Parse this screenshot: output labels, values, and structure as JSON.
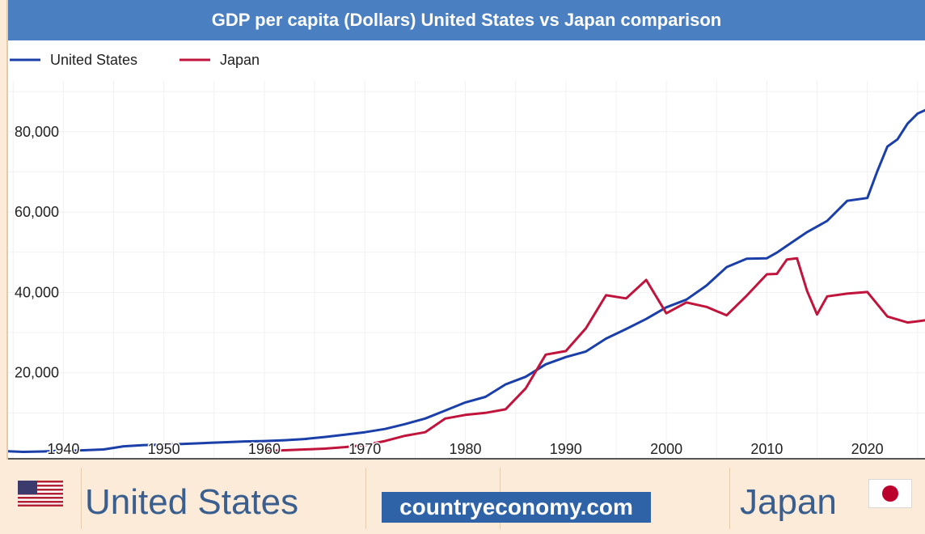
{
  "chart_data": {
    "type": "line",
    "title": "GDP per capita (Dollars) United States vs Japan comparison",
    "xlim": [
      1934.5,
      2025.9
    ],
    "ylim": [
      0,
      87000
    ],
    "x_ticks": [
      1940,
      1950,
      1960,
      1970,
      1980,
      1990,
      2000,
      2010,
      2020
    ],
    "y_ticks": [
      20000,
      40000,
      60000,
      80000
    ],
    "y_tick_labels": [
      "20,000",
      "40,000",
      "60,000",
      "80,000"
    ],
    "x_tick_labels": [
      "1940",
      "1950",
      "1960",
      "1970",
      "1980",
      "1990",
      "2000",
      "2010",
      "2020"
    ],
    "grid": true,
    "legend_position": "top-left",
    "series": [
      {
        "name": "United States",
        "color": "#1a3fa8",
        "x": [
          1934,
          1936,
          1938,
          1940,
          1942,
          1944,
          1946,
          1948,
          1950,
          1952,
          1954,
          1956,
          1958,
          1960,
          1962,
          1964,
          1966,
          1968,
          1970,
          1972,
          1974,
          1976,
          1978,
          1980,
          1982,
          1984,
          1986,
          1988,
          1990,
          1992,
          1994,
          1996,
          1998,
          2000,
          2002,
          2004,
          2006,
          2008,
          2010,
          2011,
          2012,
          2014,
          2016,
          2018,
          2020,
          2021,
          2022,
          2023,
          2024,
          2025,
          2025.9
        ],
        "y": [
          500,
          300,
          400,
          600,
          700,
          900,
          1700,
          2000,
          2100,
          2300,
          2500,
          2700,
          2900,
          3000,
          3200,
          3500,
          4000,
          4600,
          5200,
          6000,
          7200,
          8600,
          10600,
          12600,
          14000,
          17100,
          19000,
          22100,
          23900,
          25300,
          28500,
          30900,
          33400,
          36300,
          38200,
          41700,
          46300,
          48400,
          48500,
          49900,
          51600,
          55000,
          57800,
          62800,
          63500,
          70200,
          76300,
          78100,
          82000,
          84500,
          85500
        ]
      },
      {
        "name": "Japan",
        "color": "#c0143c",
        "x": [
          1960,
          1962,
          1964,
          1966,
          1968,
          1970,
          1972,
          1974,
          1976,
          1978,
          1980,
          1982,
          1984,
          1986,
          1988,
          1990,
          1992,
          1994,
          1996,
          1998,
          2000,
          2002,
          2004,
          2006,
          2008,
          2010,
          2011,
          2012,
          2013,
          2014,
          2015,
          2016,
          2018,
          2020,
          2022,
          2024,
          2025,
          2025.9
        ],
        "y": [
          500,
          700,
          900,
          1100,
          1500,
          2000,
          3000,
          4300,
          5200,
          8600,
          9500,
          10000,
          10900,
          16100,
          24500,
          25400,
          31100,
          39300,
          38500,
          43100,
          34800,
          37500,
          36400,
          34300,
          39200,
          44500,
          44600,
          48200,
          48500,
          40400,
          34500,
          39000,
          39700,
          40100,
          34000,
          32500,
          32800,
          33100
        ]
      }
    ]
  },
  "footer": {
    "left_country": "United States",
    "right_country": "Japan",
    "brand": "countryeconomy.com",
    "left_flag_icon": "us-flag-icon",
    "right_flag_icon": "japan-flag-icon"
  }
}
